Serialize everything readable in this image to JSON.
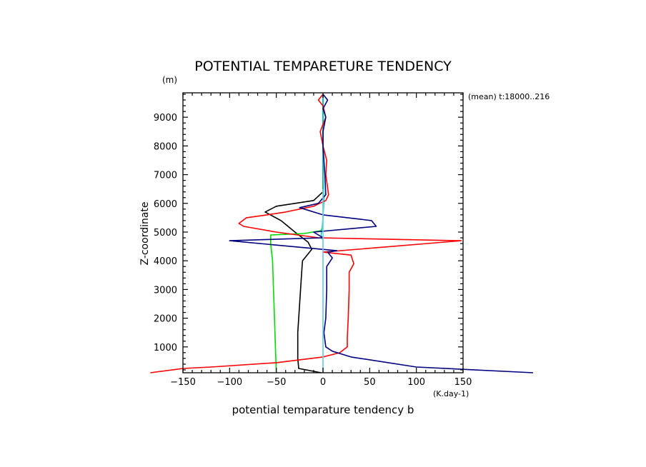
{
  "chart_data": {
    "type": "line",
    "title": "POTENTIAL TEMPARETURE TENDENCY",
    "subtitle": "(mean) t:18000..216",
    "xlabel": "potential temparature tendency b",
    "xunit": "(K.day-1)",
    "ylabel": "Z-coordinate",
    "yunit": "(m)",
    "xlim": [
      -150,
      150
    ],
    "ylim": [
      100,
      9850
    ],
    "xticks": [
      -150,
      -100,
      -50,
      0,
      50,
      100,
      150
    ],
    "yticks": [
      1000,
      2000,
      3000,
      4000,
      5000,
      6000,
      7000,
      8000,
      9000
    ],
    "grid": false,
    "series": [
      {
        "color": "#000000",
        "points": [
          [
            -2,
            100
          ],
          [
            -26,
            250
          ],
          [
            -27,
            600
          ],
          [
            -27,
            1000
          ],
          [
            -27,
            1500
          ],
          [
            -26,
            2000
          ],
          [
            -24,
            3000
          ],
          [
            -23,
            3500
          ],
          [
            -22,
            4000
          ],
          [
            -17,
            4200
          ],
          [
            -12,
            4400
          ],
          [
            -16,
            4650
          ],
          [
            -30,
            5000
          ],
          [
            -45,
            5400
          ],
          [
            -62,
            5700
          ],
          [
            -50,
            5900
          ],
          [
            -30,
            6000
          ],
          [
            -10,
            6100
          ],
          [
            -5,
            6250
          ],
          [
            0,
            6400
          ],
          [
            0,
            7000
          ],
          [
            0,
            8000
          ],
          [
            0,
            9000
          ],
          [
            0,
            9800
          ]
        ]
      },
      {
        "color": "#00dd00",
        "points": [
          [
            -50,
            100
          ],
          [
            -51,
            1000
          ],
          [
            -52,
            2000
          ],
          [
            -53,
            3000
          ],
          [
            -54,
            4000
          ],
          [
            -56,
            4600
          ],
          [
            -56,
            4900
          ],
          [
            -20,
            4950
          ],
          [
            -2,
            5050
          ],
          [
            0,
            5200
          ],
          [
            0,
            6000
          ],
          [
            0,
            7000
          ],
          [
            0,
            8000
          ],
          [
            0,
            9800
          ]
        ]
      },
      {
        "color": "#00cccc",
        "points": [
          [
            0,
            100
          ],
          [
            0,
            1000
          ],
          [
            0,
            2000
          ],
          [
            0,
            3000
          ],
          [
            0,
            4000
          ],
          [
            0,
            4700
          ],
          [
            -2,
            4900
          ],
          [
            -1,
            5100
          ],
          [
            0,
            5500
          ],
          [
            1,
            6100
          ],
          [
            0,
            7000
          ],
          [
            0,
            8000
          ],
          [
            0,
            9800
          ]
        ]
      },
      {
        "color": "#ff0000",
        "points": [
          [
            -185,
            100
          ],
          [
            -150,
            250
          ],
          [
            -120,
            300
          ],
          [
            -50,
            450
          ],
          [
            0,
            650
          ],
          [
            18,
            800
          ],
          [
            26,
            1000
          ],
          [
            26,
            1300
          ],
          [
            27,
            2000
          ],
          [
            28,
            3000
          ],
          [
            28,
            3600
          ],
          [
            33,
            3900
          ],
          [
            30,
            4200
          ],
          [
            0,
            4300
          ],
          [
            148,
            4700
          ],
          [
            -5,
            4800
          ],
          [
            -50,
            5000
          ],
          [
            -85,
            5200
          ],
          [
            -90,
            5300
          ],
          [
            -82,
            5500
          ],
          [
            -60,
            5600
          ],
          [
            -40,
            5700
          ],
          [
            -10,
            5900
          ],
          [
            3,
            6100
          ],
          [
            6,
            6300
          ],
          [
            3,
            7000
          ],
          [
            4,
            7500
          ],
          [
            0,
            8000
          ],
          [
            -3,
            8500
          ],
          [
            3,
            9000
          ],
          [
            0,
            9400
          ],
          [
            -5,
            9600
          ],
          [
            0,
            9800
          ]
        ]
      },
      {
        "color": "#000080",
        "points": [
          [
            225,
            100
          ],
          [
            100,
            300
          ],
          [
            30,
            650
          ],
          [
            10,
            850
          ],
          [
            3,
            1000
          ],
          [
            1,
            1500
          ],
          [
            3,
            2000
          ],
          [
            4,
            3000
          ],
          [
            4,
            3800
          ],
          [
            10,
            4100
          ],
          [
            5,
            4300
          ],
          [
            15,
            4350
          ],
          [
            -100,
            4700
          ],
          [
            0,
            4800
          ],
          [
            -10,
            5000
          ],
          [
            57,
            5200
          ],
          [
            52,
            5400
          ],
          [
            0,
            5600
          ],
          [
            -25,
            5850
          ],
          [
            -5,
            6000
          ],
          [
            3,
            6300
          ],
          [
            2,
            7000
          ],
          [
            0,
            8000
          ],
          [
            0,
            8500
          ],
          [
            3,
            9000
          ],
          [
            0,
            9300
          ],
          [
            5,
            9600
          ],
          [
            0,
            9800
          ]
        ]
      },
      {
        "color": "#87ceeb",
        "points": [
          [
            0,
            100
          ],
          [
            0,
            1000
          ],
          [
            0,
            2000
          ],
          [
            0,
            3000
          ],
          [
            0,
            4000
          ],
          [
            0,
            5000
          ],
          [
            0,
            6000
          ],
          [
            0,
            6500
          ]
        ]
      }
    ]
  }
}
